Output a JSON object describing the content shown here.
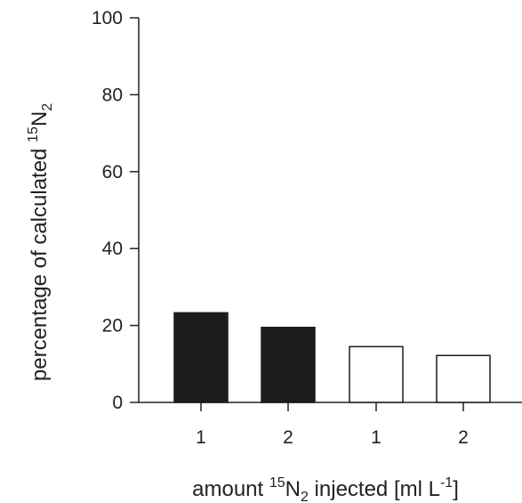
{
  "chart_data": {
    "type": "bar",
    "title": "",
    "categories": [
      "1",
      "2",
      "1",
      "2"
    ],
    "values": [
      23.3,
      19.5,
      14.5,
      12.2
    ],
    "bar_fills": [
      "#1c1c1c",
      "#1c1c1c",
      "#ffffff",
      "#ffffff"
    ],
    "ylim": [
      0,
      100
    ],
    "yticks": [
      "0",
      "20",
      "40",
      "60",
      "80",
      "100"
    ],
    "ylabel": {
      "prefix": "percentage of calculated ",
      "isotope": "15",
      "element": "N",
      "subscript": "2"
    },
    "xlabel": {
      "prefix": "amount ",
      "isotope": "15",
      "element": "N",
      "subscript": "2",
      "middle": " injected [ml L",
      "exponent": "-1",
      "suffix": "]"
    },
    "grid": false,
    "legend": "none"
  },
  "colors": {
    "axis": "#222222",
    "bar_stroke": "#1c1c1c"
  }
}
